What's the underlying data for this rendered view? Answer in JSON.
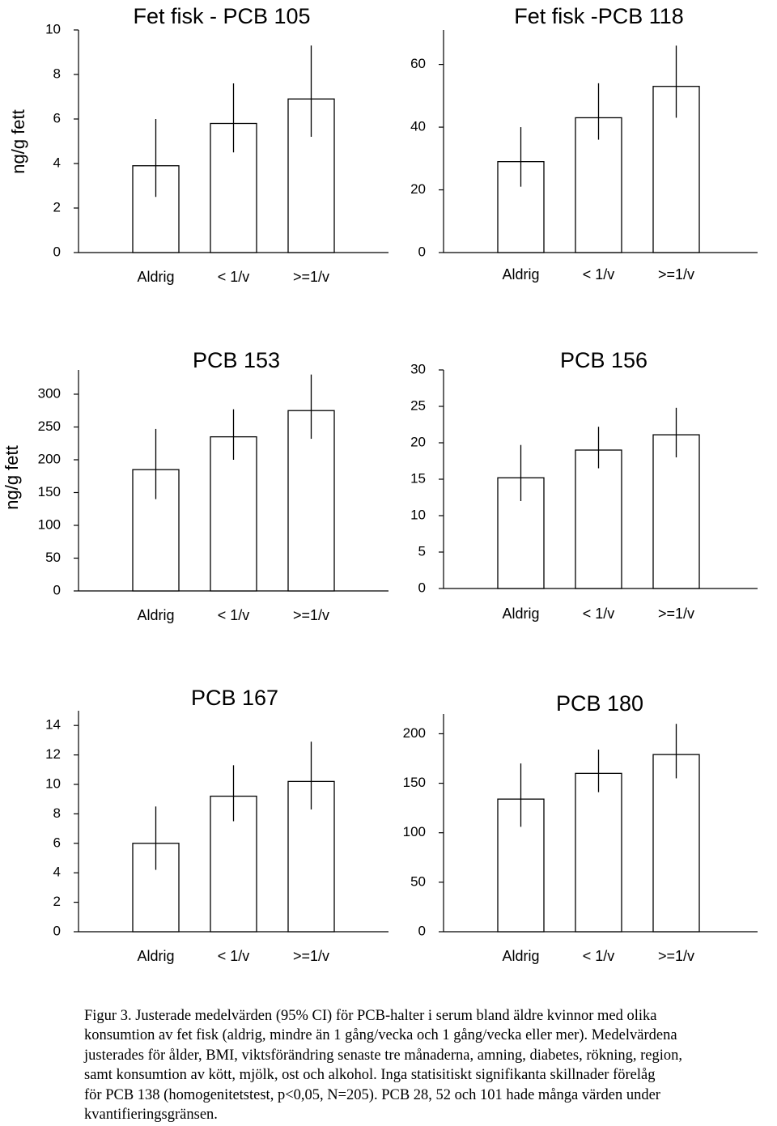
{
  "ylabel": "ng/g fett",
  "caption": "Figur 3. Justerade medelvärden (95% CI)  för PCB-halter i serum bland äldre kvinnor med olika\nkonsumtion av fet fisk (aldrig,  mindre än 1 gång/vecka och 1 gång/vecka eller mer). Medelvärdena\njusterades för ålder, BMI, viktsförändring senaste tre månaderna, amning, diabetes, rökning, region,\nsamt konsumtion av kött, mjölk, ost och alkohol. Inga statisitiskt signifikanta skillnader förelåg\n för PCB 138 (homogenitetstest, p<0,05, N=205). PCB 28, 52 och 101 hade många värden under\nkvantifieringsgränsen.",
  "chart_data": [
    {
      "type": "bar",
      "title": "Fet fisk - PCB 105",
      "ylabel": "ng/g fett",
      "categories": [
        "Aldrig",
        "< 1/v",
        ">=1/v"
      ],
      "values": [
        3.9,
        5.8,
        6.9
      ],
      "ci_low": [
        2.5,
        4.5,
        5.2
      ],
      "ci_high": [
        6.0,
        7.6,
        9.3
      ],
      "ylim": [
        0,
        10
      ],
      "yticks": [
        0,
        2,
        4,
        6,
        8,
        10
      ]
    },
    {
      "type": "bar",
      "title": "Fet fisk -PCB 118",
      "categories": [
        "Aldrig",
        "< 1/v",
        ">=1/v"
      ],
      "values": [
        29,
        43,
        53
      ],
      "ci_low": [
        21,
        36,
        43
      ],
      "ci_high": [
        40,
        54,
        66
      ],
      "ylim": [
        0,
        71
      ],
      "yticks": [
        0,
        20,
        40,
        60
      ]
    },
    {
      "type": "bar",
      "title": "PCB 153",
      "ylabel": "ng/g fett",
      "categories": [
        "Aldrig",
        "< 1/v",
        ">=1/v"
      ],
      "values": [
        185,
        235,
        275
      ],
      "ci_low": [
        140,
        200,
        232
      ],
      "ci_high": [
        247,
        277,
        330
      ],
      "ylim": [
        0,
        337
      ],
      "yticks": [
        0,
        50,
        100,
        150,
        200,
        250,
        300
      ]
    },
    {
      "type": "bar",
      "title": "PCB 156",
      "categories": [
        "Aldrig",
        "< 1/v",
        ">=1/v"
      ],
      "values": [
        15.2,
        19.0,
        21.1
      ],
      "ci_low": [
        12.0,
        16.5,
        18.0
      ],
      "ci_high": [
        19.7,
        22.2,
        24.8
      ],
      "ylim": [
        0,
        30
      ],
      "yticks": [
        0,
        5,
        10,
        15,
        20,
        25,
        30
      ]
    },
    {
      "type": "bar",
      "title": "PCB 167",
      "categories": [
        "Aldrig",
        "< 1/v",
        ">=1/v"
      ],
      "values": [
        6.0,
        9.2,
        10.2
      ],
      "ci_low": [
        4.2,
        7.5,
        8.3
      ],
      "ci_high": [
        8.5,
        11.3,
        12.9
      ],
      "ylim": [
        0,
        15
      ],
      "yticks": [
        0,
        2,
        4,
        6,
        8,
        10,
        12,
        14
      ]
    },
    {
      "type": "bar",
      "title": "PCB 180",
      "categories": [
        "Aldrig",
        "< 1/v",
        ">=1/v"
      ],
      "values": [
        134,
        160,
        179
      ],
      "ci_low": [
        106,
        141,
        155
      ],
      "ci_high": [
        170,
        184,
        210
      ],
      "ylim": [
        0,
        220
      ],
      "yticks": [
        0,
        50,
        100,
        150,
        200
      ]
    }
  ]
}
